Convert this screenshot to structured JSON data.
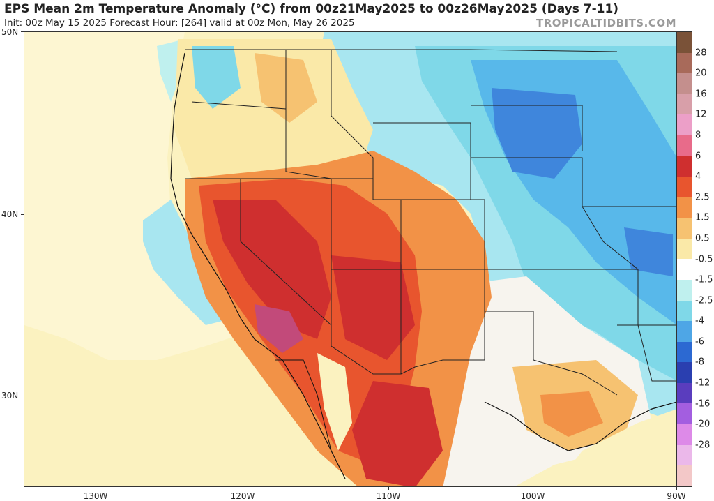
{
  "header": {
    "title": "EPS Mean 2m Temperature Anomaly (°C) from 00z21May2025 to 00z26May2025 (Days 7-11)",
    "subtitle": "Init: 00z May 15 2025   Forecast Hour: [264]   valid at 00z Mon, May 26 2025",
    "brand": "TROPICALTIDBITS.COM"
  },
  "axes": {
    "lat_labels": [
      "50N",
      "40N",
      "30N"
    ],
    "lon_labels": [
      "130W",
      "120W",
      "110W",
      "100W",
      "90W"
    ]
  },
  "colorbar": {
    "labels": [
      "28",
      "20",
      "16",
      "12",
      "8",
      "6",
      "4",
      "2.5",
      "1.5",
      "0.5",
      "-0.5",
      "-1.5",
      "-2.5",
      "-4",
      "-6",
      "-8",
      "-12",
      "-16",
      "-20",
      "-28"
    ],
    "colors": [
      "#7a5238",
      "#a86a5a",
      "#c48f8d",
      "#d89fa9",
      "#ec9fc8",
      "#e86b8a",
      "#cf2f2f",
      "#e8552e",
      "#f29247",
      "#f6c271",
      "#fae9a8",
      "#ffffff",
      "#bff0ee",
      "#7fd8e8",
      "#4ea6e6",
      "#2c69d2",
      "#2a3fb0",
      "#5a3dbe",
      "#a35ee0",
      "#dd8ae8",
      "#ebb8ea",
      "#f3c8c8"
    ]
  },
  "map_regions": {
    "ocean_colors": [
      "#fbf2c0",
      "#f9e6a2",
      "#bff0ee",
      "#7fd8e8"
    ],
    "warm_colors": [
      "#fae9a8",
      "#f6c271",
      "#f29247",
      "#e8552e",
      "#cf2f2f",
      "#b32b3b",
      "#c24a7a"
    ],
    "cool_colors": [
      "#bff0ee",
      "#a8e6f0",
      "#7fd8e8",
      "#58b8ea",
      "#4ea6e6",
      "#3f86dc"
    ]
  }
}
